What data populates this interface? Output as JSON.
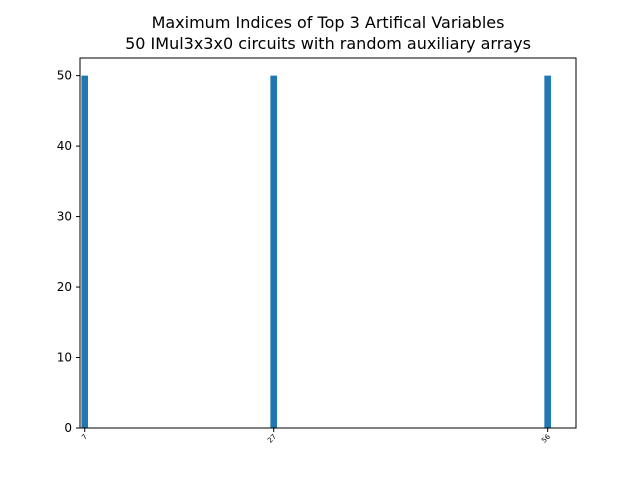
{
  "chart_data": {
    "type": "bar",
    "title": "Maximum Indices of Top 3 Artifical Variables",
    "subtitle": "50 IMul3x3x0 circuits with random auxiliary arrays",
    "xlabel": "",
    "ylabel": "",
    "x": [
      7,
      27,
      56
    ],
    "categories": [
      "7",
      "27",
      "56"
    ],
    "values": [
      50,
      50,
      50
    ],
    "xlim": [
      6.5,
      59.0
    ],
    "ylim": [
      0,
      52.5
    ],
    "yticks": [
      0,
      10,
      20,
      30,
      40,
      50
    ],
    "ytick_labels": [
      "0",
      "10",
      "20",
      "30",
      "40",
      "50"
    ],
    "bar_width": 0.7,
    "grid": false,
    "legend": "none",
    "colors": {
      "bar": "#1f77b4",
      "axis": "#000000"
    }
  }
}
